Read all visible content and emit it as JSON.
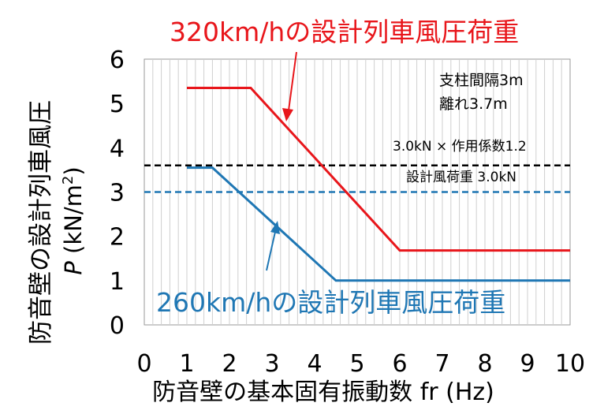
{
  "chart_data": {
    "type": "line",
    "xlabel": "防音壁の基本固有振動数 fr (Hz)",
    "ylabel_line1": "防音壁の設計列車風圧",
    "ylabel_symbol": "P",
    "ylabel_unit": " (kN/m",
    "ylabel_unit_sup": "2",
    "ylabel_unit_close": ")",
    "xlim": [
      0,
      10
    ],
    "ylim": [
      0,
      6
    ],
    "x_ticks": [
      0,
      1,
      2,
      3,
      4,
      5,
      6,
      7,
      8,
      9,
      10
    ],
    "y_ticks": [
      0,
      1,
      2,
      3,
      4,
      5,
      6
    ],
    "grid": "vertical minor gridlines every 0.2 Hz",
    "series": [
      {
        "name": "320km/hの設計列車風圧荷重",
        "color": "#e8161b",
        "x": [
          1,
          2.5,
          6,
          10
        ],
        "y": [
          5.35,
          5.35,
          1.68,
          1.68
        ]
      },
      {
        "name": "260km/hの設計列車風圧荷重",
        "color": "#1f77b4",
        "x": [
          1,
          1.6,
          4.5,
          10
        ],
        "y": [
          3.55,
          3.55,
          1.0,
          1.0
        ]
      }
    ],
    "reference_lines": [
      {
        "y": 3.6,
        "color": "#000000",
        "style": "dashed",
        "label": "3.0kN × 作用係数1.2"
      },
      {
        "y": 3.0,
        "color": "#1f77b4",
        "style": "dashed",
        "label": "設計風荷重 3.0kN"
      }
    ],
    "annotations": {
      "support_spacing": "支柱間隔3m",
      "distance": "離れ3.7m"
    }
  }
}
